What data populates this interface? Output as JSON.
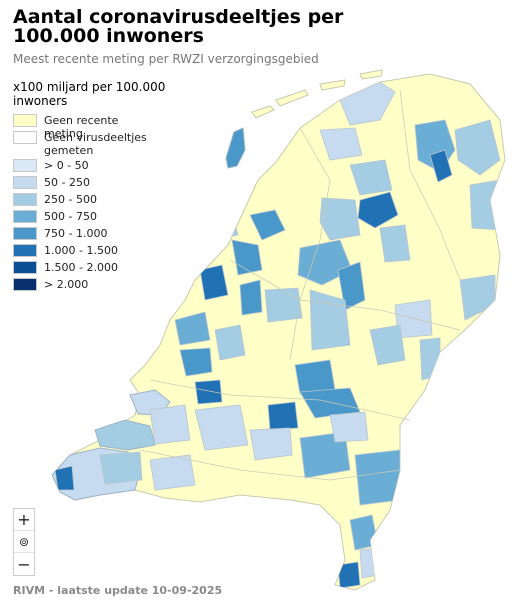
{
  "header": {
    "title": "Aantal coronavirusdeeltjes per 100.000 inwoners",
    "subtitle": "Meest recente meting per RWZI verzorgingsgebied"
  },
  "legend": {
    "title": "x100 miljard per 100.000 inwoners",
    "items": [
      {
        "label": "Geen recente meting",
        "color": "#ffffc8"
      },
      {
        "label": "Geen virusdeeltjes gemeten",
        "color": "#ffffff"
      },
      {
        "label": "> 0 - 50",
        "color": "#dbe9f6"
      },
      {
        "label": "50 - 250",
        "color": "#c6dbef"
      },
      {
        "label": "250 - 500",
        "color": "#a4cce3"
      },
      {
        "label": "500 - 750",
        "color": "#6aaed6"
      },
      {
        "label": "750 - 1.000",
        "color": "#4a98c9"
      },
      {
        "label": "1.000 - 1.500",
        "color": "#2171b5"
      },
      {
        "label": "1.500 - 2.000",
        "color": "#0b4f94"
      },
      {
        "label": "> 2.000",
        "color": "#08306b"
      }
    ]
  },
  "controls": {
    "zoom_in": "+",
    "reset": "⊚",
    "zoom_out": "−"
  },
  "source": "RIVM - laatste update 10-09-2025"
}
